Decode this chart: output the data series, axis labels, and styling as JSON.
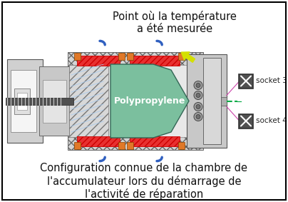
{
  "title_text": "Point où la température\na été mesurée",
  "caption_text": "Configuration connue de la chambre de\nl'accumulateur lors du démarrage de\nl'activité de réparation",
  "socket3_label": "socket 3",
  "socket4_label": "socket 4",
  "polypropylene_label": "Polypropylene",
  "bg_color": "#ffffff",
  "border_color": "#000000",
  "title_fontsize": 10.5,
  "caption_fontsize": 10.5,
  "fig_width": 4.04,
  "fig_height": 2.83,
  "dpi": 100,
  "arrow_color": "#d4e000",
  "green_fill": "#7bbf9e",
  "orange_color": "#e07828",
  "blue_color": "#3060c0",
  "gray_hatch": "#aaaaaa",
  "light_gray": "#d4d4d4",
  "mid_gray": "#b0b0b0",
  "dark_gray": "#787878",
  "socket_gray": "#606060",
  "red_fill": "#e83030",
  "white": "#ffffff"
}
